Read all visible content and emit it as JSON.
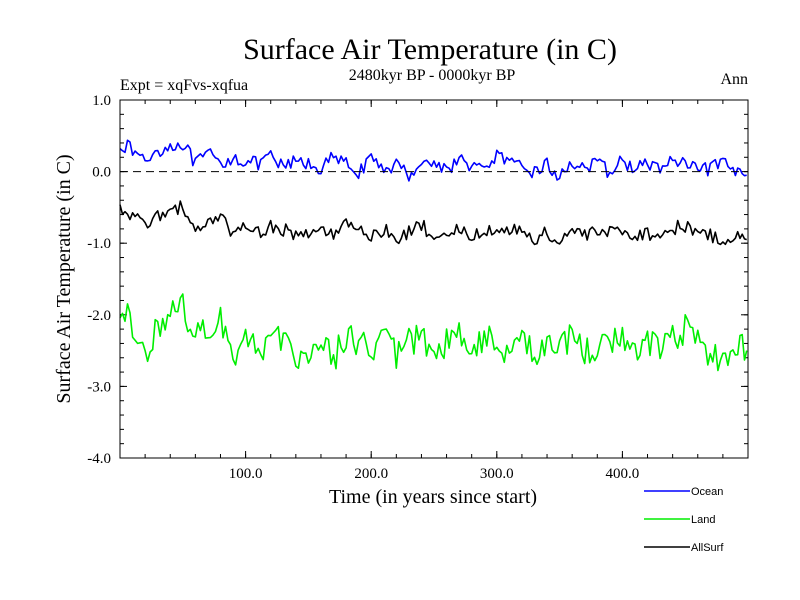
{
  "chart_data": {
    "type": "line",
    "title": "Surface Air Temperature (in C)",
    "subtitle": "2480kyr BP - 0000kyr BP",
    "left_annotation": "Expt = xqFvs-xqfua",
    "right_annotation": "Ann",
    "xlabel": "Time (in years since start)",
    "ylabel": "Surface Air Temperature (in C)",
    "xlim": [
      0,
      500
    ],
    "ylim": [
      -4.0,
      1.0
    ],
    "x_ticks": [
      100,
      200,
      300,
      400
    ],
    "x_tick_labels": [
      "100.0",
      "200.0",
      "300.0",
      "400.0"
    ],
    "y_ticks": [
      1.0,
      0.0,
      -1.0,
      -2.0,
      -3.0,
      -4.0
    ],
    "y_tick_labels": [
      "1.0",
      "0.0",
      "-1.0",
      "-2.0",
      "-3.0",
      "-4.0"
    ],
    "zero_line": "dashed",
    "legend_position": "bottom-right",
    "series": [
      {
        "name": "Ocean",
        "color": "#0000ff",
        "x": [
          0,
          10,
          20,
          30,
          40,
          50,
          60,
          70,
          80,
          90,
          100,
          110,
          120,
          130,
          140,
          150,
          160,
          170,
          180,
          190,
          200,
          210,
          220,
          230,
          240,
          250,
          260,
          270,
          280,
          290,
          300,
          310,
          320,
          330,
          340,
          350,
          360,
          370,
          380,
          390,
          400,
          410,
          420,
          430,
          440,
          450,
          460,
          470,
          480,
          490,
          499
        ],
        "values": [
          0.4,
          0.3,
          0.15,
          0.3,
          0.35,
          0.4,
          0.1,
          0.25,
          0.1,
          0.2,
          0.15,
          0.1,
          0.2,
          0.05,
          0.15,
          0.1,
          0.05,
          0.2,
          0.1,
          0.0,
          0.15,
          0.05,
          0.1,
          -0.05,
          0.15,
          0.1,
          0.05,
          0.15,
          0.1,
          0.0,
          0.25,
          0.1,
          0.05,
          0.0,
          0.1,
          -0.1,
          0.15,
          0.05,
          0.1,
          0.0,
          0.15,
          0.05,
          0.1,
          0.05,
          0.15,
          0.1,
          0.0,
          0.05,
          0.1,
          0.0,
          -0.05
        ]
      },
      {
        "name": "Land",
        "color": "#00ee00",
        "x": [
          0,
          10,
          20,
          30,
          40,
          50,
          60,
          70,
          80,
          90,
          100,
          110,
          120,
          130,
          140,
          150,
          160,
          170,
          180,
          190,
          200,
          210,
          220,
          230,
          240,
          250,
          260,
          270,
          280,
          290,
          300,
          310,
          320,
          330,
          340,
          350,
          360,
          370,
          380,
          390,
          400,
          410,
          420,
          430,
          440,
          450,
          460,
          470,
          480,
          490,
          499
        ],
        "values": [
          -2.0,
          -2.1,
          -2.5,
          -2.2,
          -2.0,
          -1.9,
          -2.3,
          -2.2,
          -2.1,
          -2.5,
          -2.4,
          -2.5,
          -2.3,
          -2.4,
          -2.6,
          -2.5,
          -2.4,
          -2.6,
          -2.3,
          -2.4,
          -2.5,
          -2.3,
          -2.6,
          -2.4,
          -2.3,
          -2.5,
          -2.4,
          -2.3,
          -2.5,
          -2.3,
          -2.4,
          -2.5,
          -2.3,
          -2.6,
          -2.4,
          -2.5,
          -2.3,
          -2.5,
          -2.4,
          -2.4,
          -2.3,
          -2.5,
          -2.4,
          -2.5,
          -2.3,
          -2.2,
          -2.4,
          -2.5,
          -2.6,
          -2.4,
          -2.5
        ]
      },
      {
        "name": "AllSurf",
        "color": "#000000",
        "x": [
          0,
          10,
          20,
          30,
          40,
          50,
          60,
          70,
          80,
          90,
          100,
          110,
          120,
          130,
          140,
          150,
          160,
          170,
          180,
          190,
          200,
          210,
          220,
          230,
          240,
          250,
          260,
          270,
          280,
          290,
          300,
          310,
          320,
          330,
          340,
          350,
          360,
          370,
          380,
          390,
          400,
          410,
          420,
          430,
          440,
          450,
          460,
          470,
          480,
          490,
          499
        ],
        "values": [
          -0.5,
          -0.6,
          -0.8,
          -0.6,
          -0.55,
          -0.5,
          -0.8,
          -0.7,
          -0.65,
          -0.85,
          -0.8,
          -0.85,
          -0.75,
          -0.8,
          -0.9,
          -0.85,
          -0.8,
          -0.9,
          -0.75,
          -0.85,
          -0.9,
          -0.8,
          -0.95,
          -0.85,
          -0.75,
          -0.9,
          -0.85,
          -0.8,
          -0.9,
          -0.8,
          -0.8,
          -0.85,
          -0.8,
          -0.95,
          -0.85,
          -1.0,
          -0.8,
          -0.9,
          -0.85,
          -0.85,
          -0.8,
          -0.9,
          -0.85,
          -0.9,
          -0.8,
          -0.75,
          -0.85,
          -0.9,
          -0.95,
          -0.9,
          -0.95
        ]
      }
    ]
  }
}
